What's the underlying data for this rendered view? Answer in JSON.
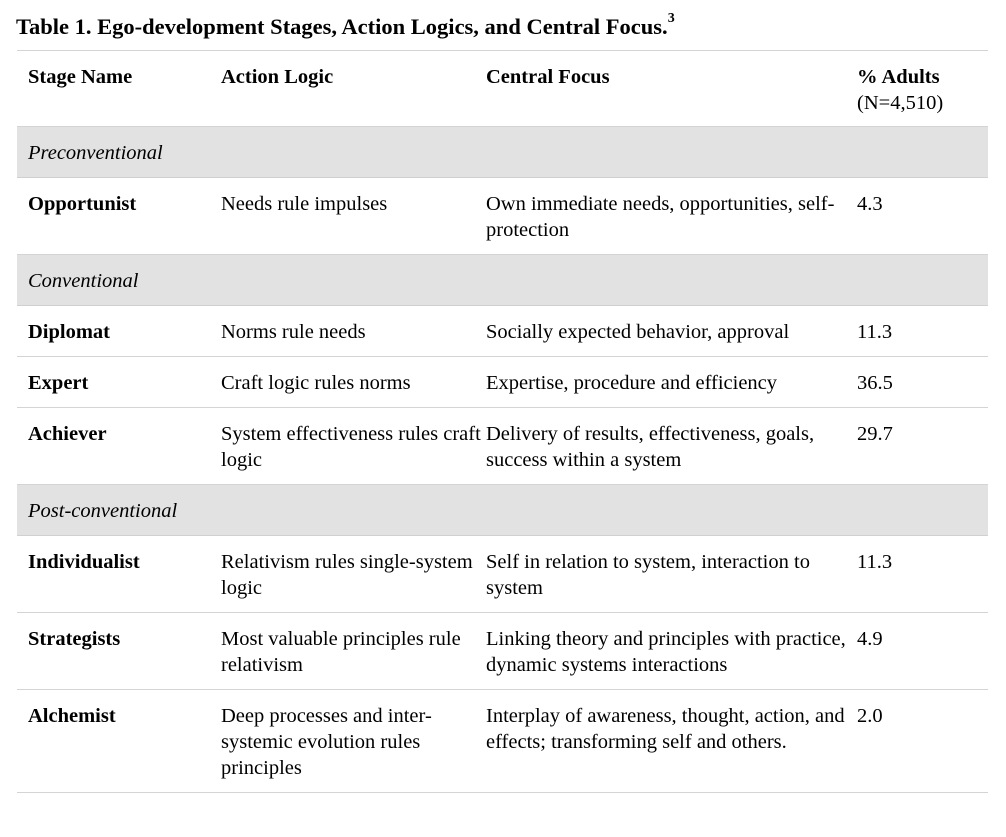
{
  "title": {
    "text": "Table 1. Ego-development Stages, Action Logics, and Central Focus.",
    "footnote": "3"
  },
  "headers": {
    "stage": "Stage Name",
    "logic": "Action Logic",
    "focus": "Central Focus",
    "adults": "% Adults",
    "adults_n": "(N=4,510)"
  },
  "groups": [
    {
      "name": "Preconventional",
      "rows": [
        {
          "stage": "Opportunist",
          "logic": "Needs rule impulses",
          "focus": "Own immediate needs, opportunities, self-protection",
          "pct": "4.3"
        }
      ]
    },
    {
      "name": "Conventional",
      "rows": [
        {
          "stage": "Diplomat",
          "logic": "Norms rule needs",
          "focus": "Socially expected behavior, approval",
          "pct": "11.3"
        },
        {
          "stage": "Expert",
          "logic": "Craft logic rules norms",
          "focus": "Expertise, procedure and efficiency",
          "pct": "36.5"
        },
        {
          "stage": "Achiever",
          "logic": "System effectiveness rules craft logic",
          "focus": "Delivery of results, effectiveness, goals, success within a system",
          "pct": "29.7"
        }
      ]
    },
    {
      "name": "Post-conventional",
      "rows": [
        {
          "stage": "Individualist",
          "logic": "Relativism rules single-system logic",
          "focus": "Self in relation to system, interaction to system",
          "pct": "11.3"
        },
        {
          "stage": "Strategists",
          "logic": "Most valuable principles rule relativism",
          "focus": "Linking theory and principles with practice, dynamic systems interactions",
          "pct": "4.9"
        },
        {
          "stage": "Alchemist",
          "logic": "Deep processes and inter-systemic evolution rules principles",
          "focus": "Interplay of awareness, thought, action, and effects; transforming self and others.",
          "pct": "2.0"
        }
      ]
    }
  ]
}
